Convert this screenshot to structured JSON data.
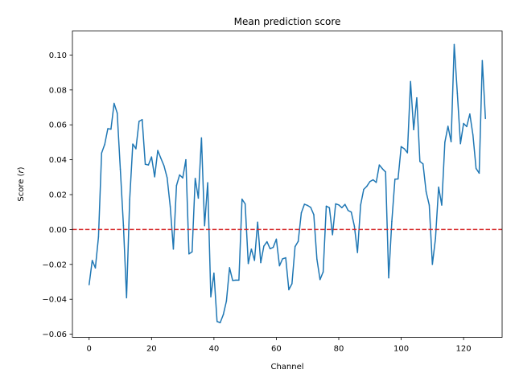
{
  "chart_data": {
    "type": "line",
    "title": "Mean prediction score",
    "xlabel": "Channel",
    "ylabel_prefix": "Score (",
    "ylabel_var": "r",
    "ylabel_suffix": ")",
    "xlim": [
      -5.35,
      132.35
    ],
    "ylim": [
      -0.0618,
      0.1138
    ],
    "xticks": [
      0,
      20,
      40,
      60,
      80,
      100,
      120
    ],
    "xtick_labels": [
      "0",
      "20",
      "40",
      "60",
      "80",
      "100",
      "120"
    ],
    "yticks": [
      -0.06,
      -0.04,
      -0.02,
      0.0,
      0.02,
      0.04,
      0.06,
      0.08,
      0.1
    ],
    "ytick_labels": [
      "−0.06",
      "−0.04",
      "−0.02",
      "0.00",
      "0.02",
      "0.04",
      "0.06",
      "0.08",
      "0.10"
    ],
    "grid": false,
    "reference_line": {
      "y": 0,
      "style": "dashed",
      "color": "#d62728"
    },
    "series": [
      {
        "color": "#1f77b4",
        "x": [
          0,
          1,
          2,
          3,
          4,
          5,
          6,
          7,
          8,
          9,
          10,
          11,
          12,
          13,
          14,
          15,
          16,
          17,
          18,
          19,
          20,
          21,
          22,
          23,
          24,
          25,
          26,
          27,
          28,
          29,
          30,
          31,
          32,
          33,
          34,
          35,
          36,
          37,
          38,
          39,
          40,
          41,
          42,
          43,
          44,
          45,
          46,
          47,
          48,
          49,
          50,
          51,
          52,
          53,
          54,
          55,
          56,
          57,
          58,
          59,
          60,
          61,
          62,
          63,
          64,
          65,
          66,
          67,
          68,
          69,
          70,
          71,
          72,
          73,
          74,
          75,
          76,
          77,
          78,
          79,
          80,
          81,
          82,
          83,
          84,
          85,
          86,
          87,
          88,
          89,
          90,
          91,
          92,
          93,
          94,
          95,
          96,
          97,
          98,
          99,
          100,
          101,
          102,
          103,
          104,
          105,
          106,
          107,
          108,
          109,
          110,
          111,
          112,
          113,
          114,
          115,
          116,
          117,
          118,
          119,
          120,
          121,
          122,
          123,
          124,
          125,
          126,
          127
        ],
        "values": [
          -0.0316,
          -0.0177,
          -0.022,
          -0.0043,
          0.0438,
          0.0488,
          0.0578,
          0.0575,
          0.0723,
          0.0668,
          0.0346,
          0.0022,
          -0.0391,
          0.0172,
          0.049,
          0.0463,
          0.062,
          0.063,
          0.0374,
          0.037,
          0.0416,
          0.0302,
          0.0453,
          0.0408,
          0.0365,
          0.0297,
          0.0131,
          -0.0112,
          0.0252,
          0.0313,
          0.0296,
          0.04,
          -0.014,
          -0.0128,
          0.0293,
          0.018,
          0.0525,
          0.0022,
          0.0268,
          -0.0385,
          -0.025,
          -0.0527,
          -0.0534,
          -0.0488,
          -0.041,
          -0.0219,
          -0.0292,
          -0.029,
          -0.029,
          0.0174,
          0.0147,
          -0.0195,
          -0.0112,
          -0.0177,
          0.0042,
          -0.019,
          -0.0095,
          -0.007,
          -0.011,
          -0.0102,
          -0.0055,
          -0.0208,
          -0.0168,
          -0.0162,
          -0.0345,
          -0.0311,
          -0.0098,
          -0.0068,
          0.0095,
          0.0145,
          0.0138,
          0.0127,
          0.0085,
          -0.017,
          -0.0287,
          -0.0243,
          0.0134,
          0.0125,
          -0.003,
          0.0147,
          0.0141,
          0.0125,
          0.0144,
          0.0109,
          0.01,
          0.002,
          -0.0132,
          0.014,
          0.023,
          0.0248,
          0.0275,
          0.0285,
          0.027,
          0.037,
          0.0348,
          0.033,
          -0.0277,
          0.0045,
          0.0288,
          0.029,
          0.0475,
          0.0463,
          0.044,
          0.0848,
          0.0572,
          0.0755,
          0.039,
          0.0376,
          0.0216,
          0.014,
          -0.02,
          -0.0051,
          0.0243,
          0.014,
          0.05,
          0.0592,
          0.0503,
          0.106,
          0.078,
          0.0492,
          0.0608,
          0.059,
          0.0662,
          0.0542,
          0.035,
          0.0323,
          0.0968,
          0.0636
        ]
      }
    ]
  }
}
